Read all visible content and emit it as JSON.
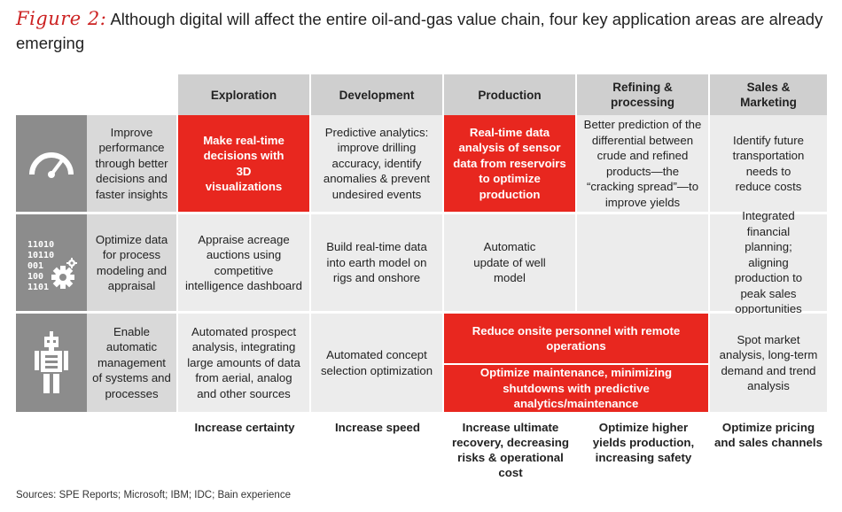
{
  "title": {
    "figure_label": "Figure 2:",
    "text": "Although digital will affect the entire oil-and-gas value chain, four key application areas are already emerging"
  },
  "columns": [
    "Exploration",
    "Development",
    "Production",
    "Refining & processing",
    "Sales & Marketing"
  ],
  "rows": [
    {
      "icon": "gauge-icon",
      "label": "Improve performance through better decisions and faster insights",
      "cells": [
        "Make real-time decisions with 3D visualizations",
        "Predictive analytics: improve drilling accuracy, identify anomalies & prevent undesired events",
        "Real-time data analysis of sensor data from reservoirs to optimize production",
        "Better prediction of the differential between crude and refined products—the “cracking spread”—to improve yields",
        "Identify future transportation needs to reduce costs"
      ]
    },
    {
      "icon": "binary-gear-icon",
      "label": "Optimize data for process modeling and appraisal",
      "cells": [
        "Appraise acreage auctions using competitive intelligence dashboard",
        "Build real-time data into earth model on rigs and onshore",
        "Automatic update of well model",
        "",
        "Integrated financial planning; aligning production to peak sales opportunities"
      ]
    },
    {
      "icon": "robot-icon",
      "label": "Enable automatic management of systems and processes",
      "cells": [
        "Automated prospect analysis, integrating large amounts of data from aerial, analog and other sources",
        "Automated concept selection optimization",
        "",
        "",
        "Spot market analysis, long-term demand and trend analysis"
      ],
      "spanning": [
        "Reduce onsite personnel with remote operations",
        "Optimize maintenance, minimizing shutdowns with predictive analytics/maintenance"
      ]
    }
  ],
  "outcomes": [
    "Increase certainty",
    "Increase speed",
    "Increase ultimate recovery, decreasing risks & operational cost",
    "Optimize higher yields production, increasing safety",
    "Optimize pricing and sales channels"
  ],
  "sources": "Sources: SPE Reports; Microsoft; IBM; IDC; Bain experience",
  "colors": {
    "highlight": "#e8271f",
    "header": "#cfcfcf",
    "icon_bg": "#8c8c8c",
    "label_bg": "#d9d9d9",
    "cell_bg": "#ececec"
  }
}
